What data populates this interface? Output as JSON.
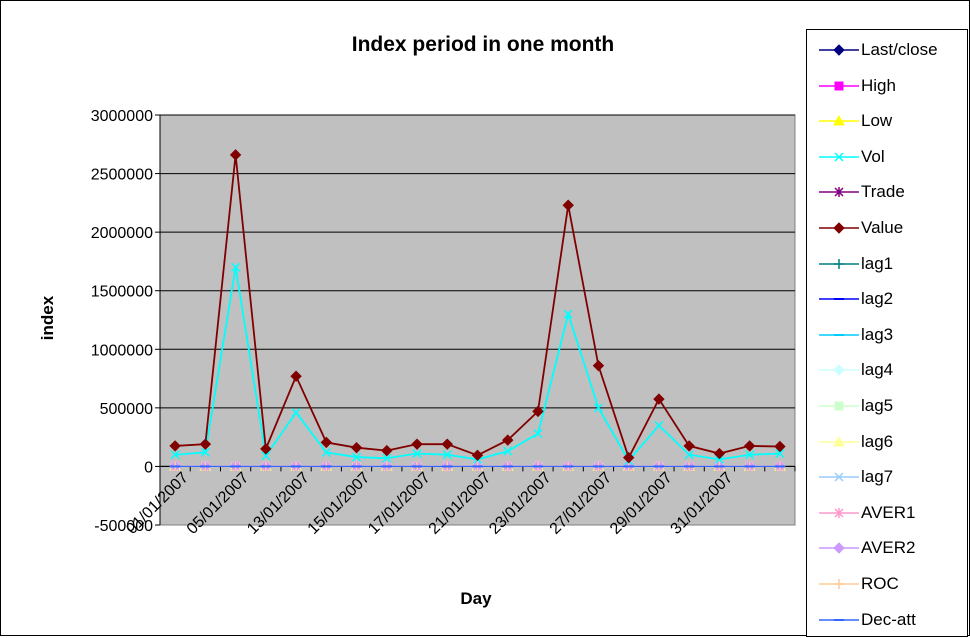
{
  "chart_data": {
    "type": "line",
    "title": "Index period in one month",
    "xlabel": "Day",
    "ylabel": "index",
    "ylim": [
      -500000,
      3000000
    ],
    "yticks": [
      "3000000",
      "2500000",
      "2000000",
      "1500000",
      "1000000",
      "500000",
      "0",
      "-500000"
    ],
    "x_tick_labels": [
      "01/01/2007",
      "05/01/2007",
      "13/01/2007",
      "15/01/2007",
      "17/01/2007",
      "21/01/2007",
      "23/01/2007",
      "27/01/2007",
      "29/01/2007",
      "31/01/2007"
    ],
    "grid": true,
    "legend_position": "right",
    "plot_background": "#c0c0c0",
    "series": [
      {
        "name": "Last/close",
        "color": "#000080",
        "marker": "diamond",
        "values": [
          2400,
          2400,
          2400,
          2400,
          2400,
          2400,
          2400,
          2400,
          2400,
          2400,
          2400,
          2400,
          2400,
          2400,
          2400,
          2400,
          2400,
          2400,
          2400,
          2400,
          2400
        ]
      },
      {
        "name": "High",
        "color": "#ff00ff",
        "marker": "square",
        "values": [
          2450,
          2450,
          2450,
          2450,
          2450,
          2450,
          2450,
          2450,
          2450,
          2450,
          2450,
          2450,
          2450,
          2450,
          2450,
          2450,
          2450,
          2450,
          2450,
          2450,
          2450
        ]
      },
      {
        "name": "Low",
        "color": "#ffff00",
        "marker": "triangle",
        "values": [
          2350,
          2350,
          2350,
          2350,
          2350,
          2350,
          2350,
          2350,
          2350,
          2350,
          2350,
          2350,
          2350,
          2350,
          2350,
          2350,
          2350,
          2350,
          2350,
          2350,
          2350
        ]
      },
      {
        "name": "Vol",
        "color": "#00ffff",
        "marker": "x",
        "values": [
          100000,
          120000,
          1700000,
          90000,
          460000,
          120000,
          80000,
          70000,
          110000,
          100000,
          60000,
          130000,
          280000,
          1300000,
          500000,
          50000,
          350000,
          100000,
          60000,
          100000,
          110000
        ]
      },
      {
        "name": "Trade",
        "color": "#800080",
        "marker": "star",
        "values": [
          200,
          200,
          500,
          200,
          300,
          200,
          200,
          200,
          200,
          200,
          200,
          200,
          300,
          500,
          300,
          200,
          300,
          200,
          200,
          200,
          200
        ]
      },
      {
        "name": "Value",
        "color": "#800000",
        "marker": "diamond",
        "values": [
          175000,
          190000,
          2660000,
          150000,
          770000,
          205000,
          160000,
          135000,
          190000,
          190000,
          95000,
          225000,
          470000,
          2230000,
          860000,
          75000,
          575000,
          175000,
          110000,
          175000,
          170000
        ]
      },
      {
        "name": "lag1",
        "color": "#008080",
        "marker": "plus",
        "values": [
          2400,
          2400,
          2400,
          2400,
          2400,
          2400,
          2400,
          2400,
          2400,
          2400,
          2400,
          2400,
          2400,
          2400,
          2400,
          2400,
          2400,
          2400,
          2400,
          2400,
          2400
        ]
      },
      {
        "name": "lag2",
        "color": "#0000ff",
        "marker": "dash",
        "values": [
          2400,
          2400,
          2400,
          2400,
          2400,
          2400,
          2400,
          2400,
          2400,
          2400,
          2400,
          2400,
          2400,
          2400,
          2400,
          2400,
          2400,
          2400,
          2400,
          2400,
          2400
        ]
      },
      {
        "name": "lag3",
        "color": "#00ccff",
        "marker": "dash",
        "values": [
          2400,
          2400,
          2400,
          2400,
          2400,
          2400,
          2400,
          2400,
          2400,
          2400,
          2400,
          2400,
          2400,
          2400,
          2400,
          2400,
          2400,
          2400,
          2400,
          2400,
          2400
        ]
      },
      {
        "name": "lag4",
        "color": "#ccffff",
        "marker": "diamond",
        "values": [
          2400,
          2400,
          2400,
          2400,
          2400,
          2400,
          2400,
          2400,
          2400,
          2400,
          2400,
          2400,
          2400,
          2400,
          2400,
          2400,
          2400,
          2400,
          2400,
          2400,
          2400
        ]
      },
      {
        "name": "lag5",
        "color": "#ccffcc",
        "marker": "square",
        "values": [
          2400,
          2400,
          2400,
          2400,
          2400,
          2400,
          2400,
          2400,
          2400,
          2400,
          2400,
          2400,
          2400,
          2400,
          2400,
          2400,
          2400,
          2400,
          2400,
          2400,
          2400
        ]
      },
      {
        "name": "lag6",
        "color": "#ffff99",
        "marker": "triangle",
        "values": [
          2400,
          2400,
          2400,
          2400,
          2400,
          2400,
          2400,
          2400,
          2400,
          2400,
          2400,
          2400,
          2400,
          2400,
          2400,
          2400,
          2400,
          2400,
          2400,
          2400,
          2400
        ]
      },
      {
        "name": "lag7",
        "color": "#99ccff",
        "marker": "x",
        "values": [
          2400,
          2400,
          2400,
          2400,
          2400,
          2400,
          2400,
          2400,
          2400,
          2400,
          2400,
          2400,
          2400,
          2400,
          2400,
          2400,
          2400,
          2400,
          2400,
          2400,
          2400
        ]
      },
      {
        "name": "AVER1",
        "color": "#ff99cc",
        "marker": "star",
        "values": [
          2400,
          2400,
          2400,
          2400,
          2400,
          2400,
          2400,
          2400,
          2400,
          2400,
          2400,
          2400,
          2400,
          2400,
          2400,
          2400,
          2400,
          2400,
          2400,
          2400,
          2400
        ]
      },
      {
        "name": "AVER2",
        "color": "#cc99ff",
        "marker": "diamond",
        "values": [
          2400,
          2400,
          2400,
          2400,
          2400,
          2400,
          2400,
          2400,
          2400,
          2400,
          2400,
          2400,
          2400,
          2400,
          2400,
          2400,
          2400,
          2400,
          2400,
          2400,
          2400
        ]
      },
      {
        "name": "ROC",
        "color": "#ffcc99",
        "marker": "plus",
        "values": [
          0,
          0,
          0,
          0,
          0,
          0,
          0,
          0,
          0,
          0,
          0,
          0,
          0,
          0,
          0,
          0,
          0,
          0,
          0,
          0,
          0
        ]
      },
      {
        "name": "Dec-att",
        "color": "#3366ff",
        "marker": "dash",
        "values": [
          0,
          0,
          0,
          0,
          0,
          0,
          0,
          0,
          0,
          0,
          0,
          0,
          0,
          0,
          0,
          0,
          0,
          0,
          0,
          0,
          0
        ]
      }
    ]
  }
}
